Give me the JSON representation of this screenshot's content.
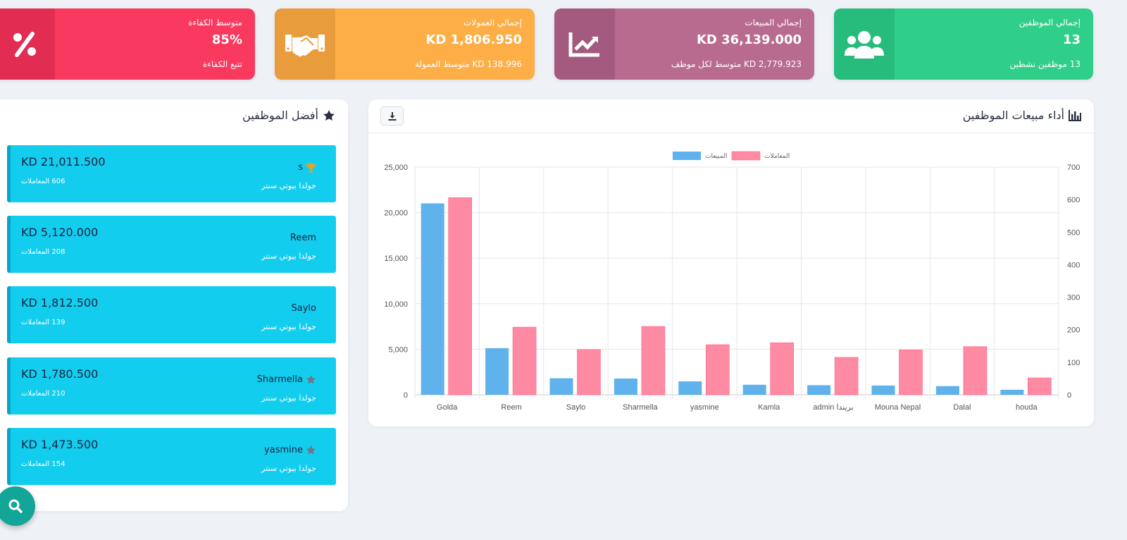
{
  "stats": {
    "employees": {
      "label": "إجمالي الموظفين",
      "value": "13",
      "sub": "13 موظفين نشطين",
      "icon": "users-icon",
      "color": "#2fcf89",
      "icon_bg": "#28bc7c"
    },
    "sales": {
      "label": "إجمالي المبيعات",
      "value": "KD 36,139.000",
      "sub": "KD 2,779.923 متوسط لكل موظف",
      "icon": "chart-line-icon",
      "color": "#b86b8e",
      "icon_bg": "#a45a7e"
    },
    "commissions": {
      "label": "إجمالي العمولات",
      "value": "KD 1,806.950",
      "sub": "KD 138.996 متوسط العمولة",
      "icon": "handshake-icon",
      "color": "#fdae46",
      "icon_bg": "#e89c3c"
    },
    "efficiency": {
      "label": "متوسط الكفاءة",
      "value": "85%",
      "sub": "تتبع الكفاءة",
      "icon": "percent-icon",
      "color": "#fa395f",
      "icon_bg": "#e22c52"
    }
  },
  "top_employees": {
    "title": "أفضل الموظفين",
    "items": [
      {
        "name": "s",
        "badge": "trophy-icon",
        "amount": "KD 21,011.500",
        "transactions": "606 المعاملات",
        "branch": "جولدا بيوتي سنتر"
      },
      {
        "name": "Reem",
        "badge": "",
        "amount": "KD 5,120.000",
        "transactions": "208 المعاملات",
        "branch": "جولدا بيوتي سنتر"
      },
      {
        "name": "Saylo",
        "badge": "",
        "amount": "KD 1,812.500",
        "transactions": "139 المعاملات",
        "branch": "جولدا بيوتي سنتر"
      },
      {
        "name": "Sharmella",
        "badge": "star-icon",
        "amount": "KD 1,780.500",
        "transactions": "210 المعاملات",
        "branch": "جولدا بيوتي سنتر"
      },
      {
        "name": "yasmine",
        "badge": "star-icon",
        "amount": "KD 1,473.500",
        "transactions": "154 المعاملات",
        "branch": "جولدا بيوتي سنتر"
      }
    ]
  },
  "sales_chart": {
    "title": "أداء مبيعات الموظفين",
    "download_icon": "download-icon"
  },
  "chart_data": {
    "type": "bar",
    "categories": [
      "Golda",
      "Reem",
      "Saylo",
      "Sharmella",
      "yasmine",
      "Kamla",
      "admin بريندا",
      "Mouna Nepal",
      "Dalal",
      "houda"
    ],
    "series": [
      {
        "name": "المبيعات",
        "axis": "left",
        "color": "#5fb2ec",
        "values": [
          21011.5,
          5120,
          1812.5,
          1780.5,
          1473.5,
          1100,
          1050,
          1020,
          950,
          550
        ]
      },
      {
        "name": "المعاملات",
        "axis": "right",
        "color": "#ff8aa3",
        "values": [
          606,
          208,
          139,
          210,
          154,
          160,
          115,
          138,
          148,
          52
        ]
      }
    ],
    "y_left": {
      "min": 0,
      "max": 25000,
      "ticks": [
        "0",
        "5,000",
        "10,000",
        "15,000",
        "20,000",
        "25,000"
      ]
    },
    "y_right": {
      "min": 0,
      "max": 700,
      "ticks": [
        "0",
        "100",
        "200",
        "300",
        "400",
        "500",
        "600",
        "700"
      ]
    },
    "legend_position": "top",
    "grid": true
  }
}
